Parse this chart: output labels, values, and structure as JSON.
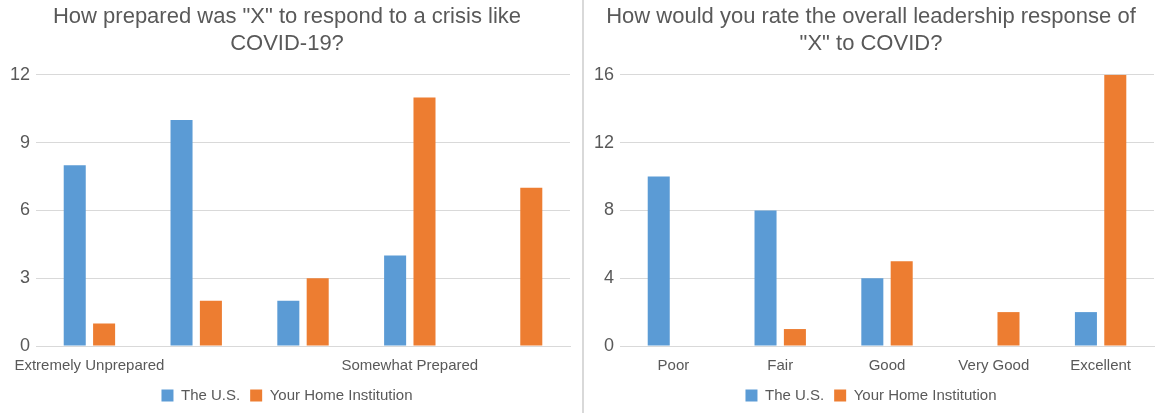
{
  "chart_data": [
    {
      "type": "bar",
      "title": "How prepared was \"X\" to respond to a crisis like COVID-19?",
      "categories": [
        "Extremely Unprepared",
        null,
        null,
        "Somewhat Prepared",
        null
      ],
      "series": [
        {
          "name": "The U.S.",
          "color": "#5b9bd5",
          "values": [
            8,
            10,
            2,
            4,
            0
          ]
        },
        {
          "name": "Your Home Institution",
          "color": "#ed7d31",
          "values": [
            1,
            2,
            3,
            11,
            7
          ]
        }
      ],
      "ylim": [
        0,
        12
      ],
      "yticks": [
        0,
        3,
        6,
        9,
        12
      ],
      "grid": "y",
      "legend": "bottom"
    },
    {
      "type": "bar",
      "title": "How would you rate the overall leadership response of \"X\" to COVID?",
      "categories": [
        "Poor",
        "Fair",
        "Good",
        "Very Good",
        "Excellent"
      ],
      "series": [
        {
          "name": "The U.S.",
          "color": "#5b9bd5",
          "values": [
            10,
            8,
            4,
            0,
            2
          ]
        },
        {
          "name": "Your Home Institution",
          "color": "#ed7d31",
          "values": [
            0,
            1,
            5,
            2,
            16
          ]
        }
      ],
      "ylim": [
        0,
        16
      ],
      "yticks": [
        0,
        4,
        8,
        12,
        16
      ],
      "grid": "y",
      "legend": "bottom"
    }
  ]
}
